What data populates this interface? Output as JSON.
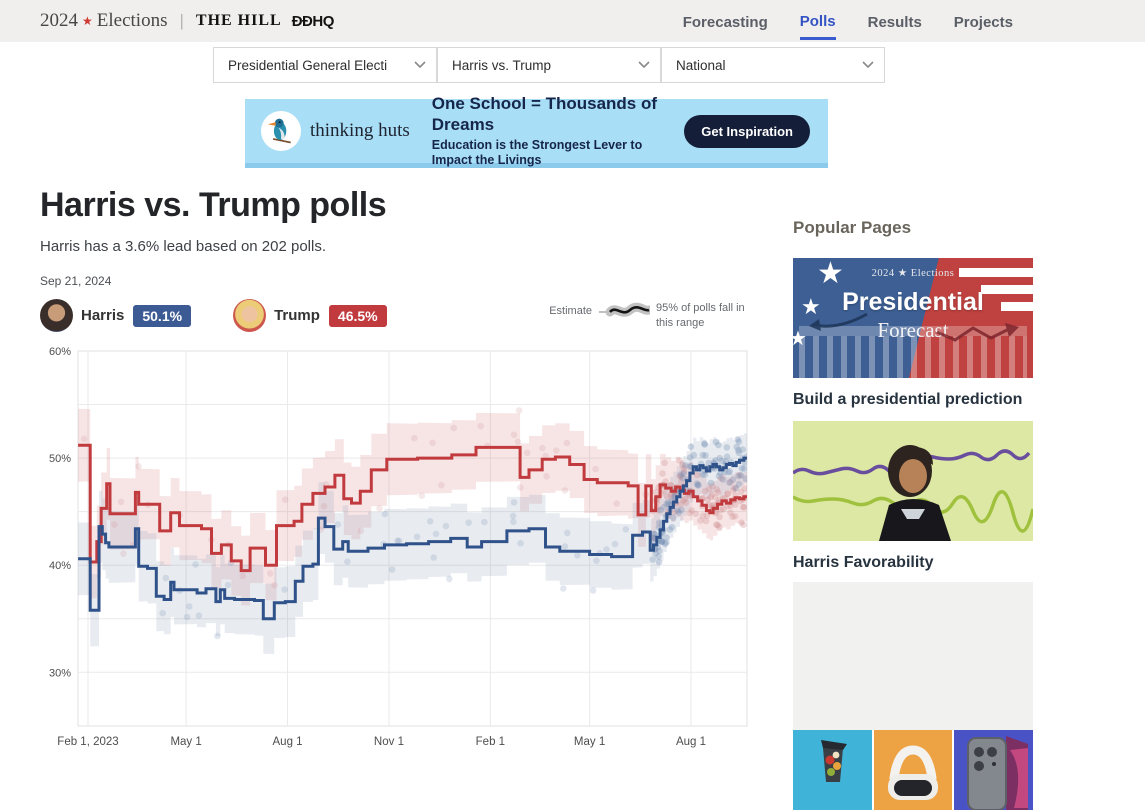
{
  "header": {
    "brand": {
      "year": "2024",
      "star": "★",
      "name": "Elections",
      "partner_hill": "THE HILL",
      "partner_ddhq": "ĐĐHQ"
    },
    "nav": [
      {
        "label": "Forecasting",
        "active": false
      },
      {
        "label": "Polls",
        "active": true
      },
      {
        "label": "Results",
        "active": false
      },
      {
        "label": "Projects",
        "active": false
      }
    ]
  },
  "filters": [
    {
      "value": "Presidential General Electi"
    },
    {
      "value": "Harris vs. Trump"
    },
    {
      "value": "National"
    }
  ],
  "ad": {
    "brand": "thinking huts",
    "headline": "One School = Thousands of Dreams",
    "subheadline": "Education is the Strongest Lever to Impact the Livings",
    "cta": "Get Inspiration"
  },
  "page": {
    "title": "Harris vs. Trump polls",
    "subtitle": "Harris has a 3.6% lead based on 202 polls.",
    "date": "Sep 21, 2024"
  },
  "legend": {
    "candidates": [
      {
        "name": "Harris",
        "value": "50.1%",
        "color": "#3c5a93"
      },
      {
        "name": "Trump",
        "value": "46.5%",
        "color": "#c03a3e"
      }
    ],
    "estimate_label": "Estimate",
    "range_label": "95% of polls fall in this range"
  },
  "sidebar": {
    "heading": "Popular Pages",
    "forecast_card": {
      "badge": "2024 ★ Elections",
      "title": "Presidential",
      "subtitle": "Forecast",
      "caption": "Build a presidential prediction"
    },
    "favorability_card": {
      "caption": "Harris Favorability"
    }
  },
  "chart_data": {
    "type": "line",
    "title": "Harris vs. Trump polls",
    "x_domain_days": [
      -9,
      598
    ],
    "x_ticks": [
      {
        "day": 0,
        "label": "Feb 1, 2023"
      },
      {
        "day": 89,
        "label": "May 1"
      },
      {
        "day": 181,
        "label": "Aug 1"
      },
      {
        "day": 273,
        "label": "Nov 1"
      },
      {
        "day": 365,
        "label": "Feb 1"
      },
      {
        "day": 455,
        "label": "May 1"
      },
      {
        "day": 547,
        "label": "Aug 1"
      }
    ],
    "y_ticks": [
      30,
      40,
      50,
      60
    ],
    "y_grid": [
      25,
      30,
      35,
      40,
      45,
      50,
      55,
      60
    ],
    "ylim": [
      25,
      60
    ],
    "grid": true,
    "legend_position": "top-right",
    "band_halfwidth": [
      [
        -9,
        3.4
      ],
      [
        100,
        3.2
      ],
      [
        250,
        3.4
      ],
      [
        365,
        3.2
      ],
      [
        480,
        3.1
      ],
      [
        540,
        2.8
      ],
      [
        598,
        2.3
      ]
    ],
    "series": [
      {
        "name": "Trump",
        "end_value": 46.5,
        "color": "#c13b3e",
        "band_color": "rgba(205,95,100,0.16)",
        "dot_color": "#cd8b8f",
        "points": [
          [
            -9,
            51.2
          ],
          [
            2,
            40.3
          ],
          [
            8,
            42.2
          ],
          [
            12,
            45.3
          ],
          [
            17,
            47.6
          ],
          [
            20,
            44.8
          ],
          [
            43,
            46.8
          ],
          [
            46,
            45.7
          ],
          [
            65,
            43.2
          ],
          [
            75,
            44.9
          ],
          [
            83,
            43.7
          ],
          [
            103,
            43.4
          ],
          [
            112,
            41.1
          ],
          [
            121,
            41.9
          ],
          [
            130,
            40.4
          ],
          [
            139,
            39.5
          ],
          [
            147,
            41.6
          ],
          [
            161,
            40.0
          ],
          [
            171,
            43.7
          ],
          [
            187,
            44.1
          ],
          [
            194,
            45.7
          ],
          [
            204,
            46.7
          ],
          [
            215,
            47.3
          ],
          [
            224,
            48.4
          ],
          [
            232,
            46.2
          ],
          [
            239,
            45.8
          ],
          [
            247,
            46.9
          ],
          [
            257,
            48.9
          ],
          [
            271,
            49.9
          ],
          [
            299,
            50.0
          ],
          [
            330,
            50.3
          ],
          [
            352,
            51.0
          ],
          [
            392,
            48.2
          ],
          [
            400,
            48.9
          ],
          [
            412,
            49.9
          ],
          [
            424,
            50.1
          ],
          [
            437,
            49.4
          ],
          [
            450,
            48.0
          ],
          [
            462,
            47.7
          ],
          [
            490,
            47.4
          ],
          [
            499,
            44.7
          ],
          [
            506,
            47.4
          ],
          [
            511,
            45.1
          ],
          [
            515,
            46.4
          ],
          [
            519,
            47.5
          ],
          [
            524,
            47.2
          ],
          [
            529,
            46.9
          ],
          [
            533,
            47.3
          ],
          [
            537,
            47.0
          ],
          [
            541,
            46.7
          ],
          [
            545,
            46.9
          ],
          [
            549,
            46.4
          ],
          [
            553,
            46.0
          ],
          [
            557,
            45.6
          ],
          [
            561,
            45.1
          ],
          [
            564,
            44.9
          ],
          [
            567,
            45.3
          ],
          [
            571,
            45.7
          ],
          [
            575,
            46.0
          ],
          [
            579,
            45.8
          ],
          [
            583,
            46.1
          ],
          [
            587,
            46.3
          ],
          [
            591,
            46.2
          ],
          [
            595,
            46.4
          ],
          [
            598,
            46.5
          ]
        ]
      },
      {
        "name": "Harris",
        "end_value": 50.1,
        "color": "#30528a",
        "band_color": "rgba(115,135,165,0.16)",
        "dot_color": "#6e87b0",
        "points": [
          [
            -9,
            40.6
          ],
          [
            2,
            35.8
          ],
          [
            10,
            43.6
          ],
          [
            13,
            42.9
          ],
          [
            16,
            42.1
          ],
          [
            19,
            41.7
          ],
          [
            43,
            43.4
          ],
          [
            46,
            39.9
          ],
          [
            54,
            39.7
          ],
          [
            62,
            37.1
          ],
          [
            69,
            36.8
          ],
          [
            75,
            38.4
          ],
          [
            78,
            37.7
          ],
          [
            99,
            37.4
          ],
          [
            107,
            37.8
          ],
          [
            116,
            36.6
          ],
          [
            120,
            37.7
          ],
          [
            124,
            36.9
          ],
          [
            133,
            36.8
          ],
          [
            151,
            36.7
          ],
          [
            159,
            35.0
          ],
          [
            169,
            36.5
          ],
          [
            179,
            36.6
          ],
          [
            188,
            38.5
          ],
          [
            195,
            39.9
          ],
          [
            204,
            40.1
          ],
          [
            209,
            44.4
          ],
          [
            215,
            43.6
          ],
          [
            223,
            41.5
          ],
          [
            231,
            42.2
          ],
          [
            236,
            41.3
          ],
          [
            254,
            41.6
          ],
          [
            269,
            41.9
          ],
          [
            289,
            42.0
          ],
          [
            309,
            42.2
          ],
          [
            329,
            42.5
          ],
          [
            344,
            41.7
          ],
          [
            357,
            42.2
          ],
          [
            380,
            43.2
          ],
          [
            400,
            43.4
          ],
          [
            415,
            41.7
          ],
          [
            428,
            41.3
          ],
          [
            455,
            41.0
          ],
          [
            475,
            40.8
          ],
          [
            494,
            42.8
          ],
          [
            503,
            43.1
          ],
          [
            510,
            41.4
          ],
          [
            513,
            41.9
          ],
          [
            516,
            42.6
          ],
          [
            519,
            43.3
          ],
          [
            522,
            44.1
          ],
          [
            525,
            44.8
          ],
          [
            528,
            45.4
          ],
          [
            531,
            45.9
          ],
          [
            534,
            46.4
          ],
          [
            537,
            46.9
          ],
          [
            540,
            47.4
          ],
          [
            543,
            47.9
          ],
          [
            546,
            48.6
          ],
          [
            549,
            49.2
          ],
          [
            552,
            48.9
          ],
          [
            555,
            49.3
          ],
          [
            558,
            49.1
          ],
          [
            561,
            48.8
          ],
          [
            564,
            49.2
          ],
          [
            567,
            49.4
          ],
          [
            570,
            49.2
          ],
          [
            573,
            48.9
          ],
          [
            576,
            49.1
          ],
          [
            579,
            49.4
          ],
          [
            582,
            49.5
          ],
          [
            585,
            49.3
          ],
          [
            588,
            49.6
          ],
          [
            591,
            49.8
          ],
          [
            595,
            50.0
          ],
          [
            598,
            50.1
          ]
        ]
      }
    ],
    "scatter": {
      "seed": 42,
      "groups": [
        {
          "phase": "sparse",
          "count": 40,
          "day_min": -5,
          "day_max": 512,
          "jitter": 4.5,
          "radius": 3.3,
          "opacity": 0.2
        },
        {
          "phase": "dense",
          "count": 115,
          "day_min": 512,
          "day_max": 598,
          "jitter": 2.8,
          "radius": 3.3,
          "opacity": 0.3
        }
      ]
    }
  }
}
